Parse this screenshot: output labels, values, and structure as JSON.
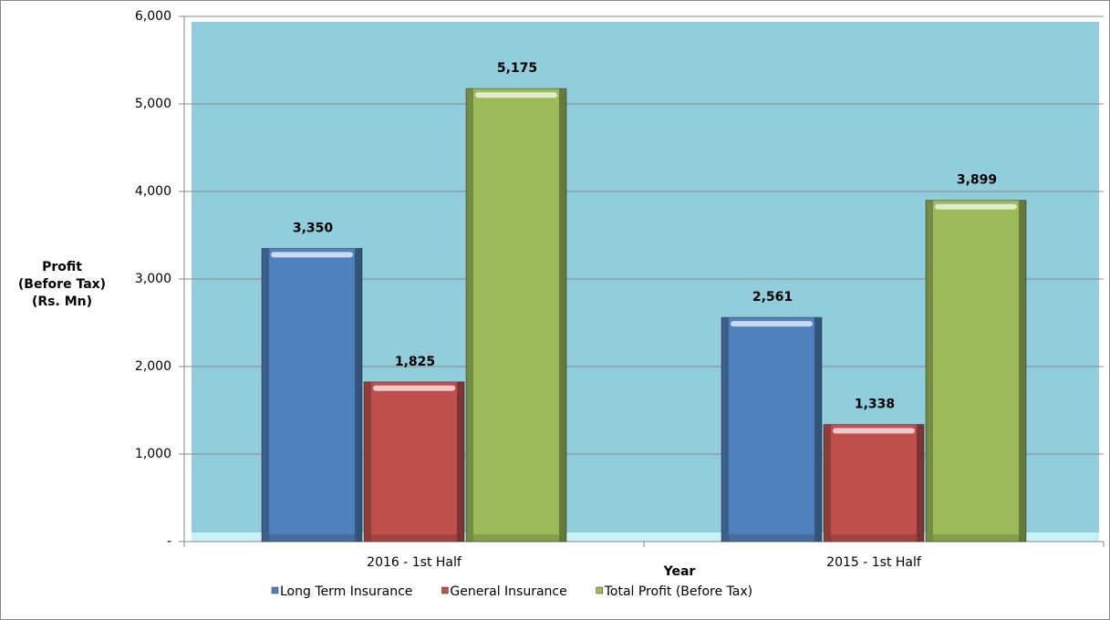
{
  "chart_data": {
    "type": "bar",
    "y_label": [
      "Profit",
      "(Before Tax)",
      "(Rs. Mn)"
    ],
    "x_label": "Year",
    "categories": [
      "2016 - 1st Half",
      "2015 - 1st Half"
    ],
    "series": [
      {
        "name": "Long Term Insurance",
        "color": "#4f81bd",
        "values": [
          3350,
          2561
        ],
        "value_labels": [
          "3,350",
          "2,561"
        ]
      },
      {
        "name": "General Insurance",
        "color": "#c0504d",
        "values": [
          1825,
          1338
        ],
        "value_labels": [
          "1,825",
          "1,338"
        ]
      },
      {
        "name": "Total Profit (Before Tax)",
        "color": "#9bbb59",
        "values": [
          5175,
          3899
        ],
        "value_labels": [
          "5,175",
          "3,899"
        ]
      }
    ],
    "ylim": [
      0,
      6000
    ],
    "yticks": [
      {
        "value": 0,
        "label": "-"
      },
      {
        "value": 1000,
        "label": "1,000"
      },
      {
        "value": 2000,
        "label": "2,000"
      },
      {
        "value": 3000,
        "label": "3,000"
      },
      {
        "value": 4000,
        "label": "4,000"
      },
      {
        "value": 5000,
        "label": "5,000"
      },
      {
        "value": 6000,
        "label": "6,000"
      }
    ],
    "grid": true,
    "plot_color": "#92cddc"
  }
}
